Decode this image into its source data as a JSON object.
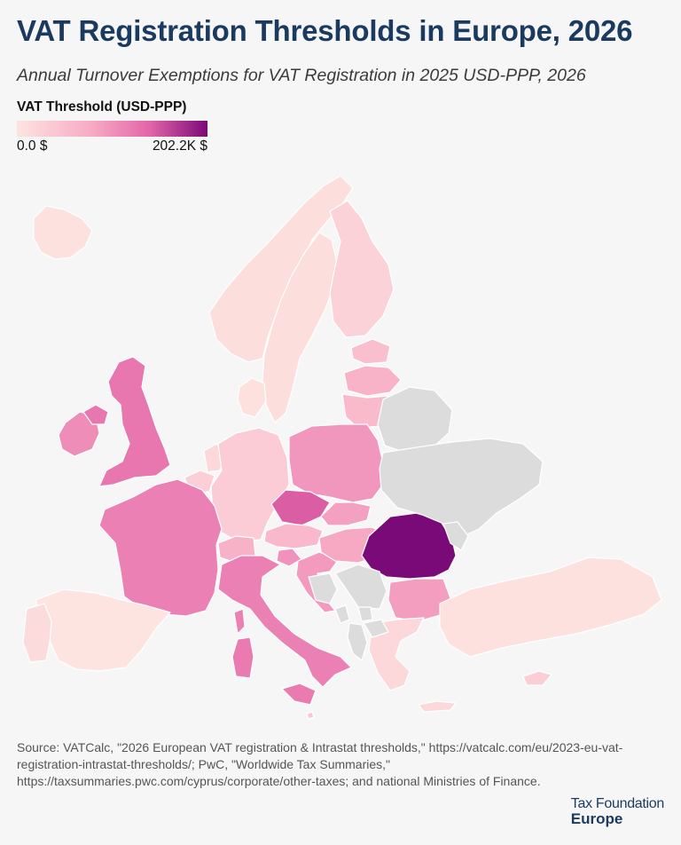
{
  "header": {
    "title": "VAT Registration Thresholds in Europe, 2026",
    "subtitle": "Annual Turnover Exemptions for VAT Registration in 2025 USD-PPP, 2026"
  },
  "legend": {
    "title": "VAT Threshold (USD-PPP)",
    "min_label": "0.0 $",
    "max_label": "202.2K $",
    "min_value": 0,
    "max_value": 202200,
    "color_low": "#fde4e0",
    "color_high": "#7a0a77",
    "no_data_color": "#dcdcdc"
  },
  "map": {
    "regions": [
      {
        "name": "Iceland",
        "level": 0.02
      },
      {
        "name": "Norway",
        "level": 0.04
      },
      {
        "name": "Sweden",
        "level": 0.04
      },
      {
        "name": "Finland",
        "level": 0.12
      },
      {
        "name": "Estonia",
        "level": 0.25
      },
      {
        "name": "Latvia",
        "level": 0.33
      },
      {
        "name": "Lithuania",
        "level": 0.28
      },
      {
        "name": "Denmark",
        "level": 0.02
      },
      {
        "name": "United Kingdom",
        "level": 0.62
      },
      {
        "name": "Ireland",
        "level": 0.52
      },
      {
        "name": "Northern Ireland",
        "level": 0.62
      },
      {
        "name": "Netherlands",
        "level": 0.08
      },
      {
        "name": "Belgium",
        "level": 0.14
      },
      {
        "name": "Luxembourg",
        "level": 0.2
      },
      {
        "name": "Germany",
        "level": 0.16
      },
      {
        "name": "Poland",
        "level": 0.48
      },
      {
        "name": "Czechia",
        "level": 0.72
      },
      {
        "name": "Slovakia",
        "level": 0.44
      },
      {
        "name": "Austria",
        "level": 0.3
      },
      {
        "name": "Switzerland",
        "level": 0.34
      },
      {
        "name": "France",
        "level": 0.58
      },
      {
        "name": "Slovenia",
        "level": 0.5
      },
      {
        "name": "Croatia",
        "level": 0.46
      },
      {
        "name": "Hungary",
        "level": 0.4
      },
      {
        "name": "Romania",
        "level": 1.0
      },
      {
        "name": "Bulgaria",
        "level": 0.45
      },
      {
        "name": "Italy",
        "level": 0.58
      },
      {
        "name": "Sardinia",
        "level": 0.6
      },
      {
        "name": "Corsica",
        "level": 0.58
      },
      {
        "name": "Sicily",
        "level": 0.6
      },
      {
        "name": "Spain",
        "level": 0.0
      },
      {
        "name": "Portugal",
        "level": 0.06
      },
      {
        "name": "Greece",
        "level": 0.08
      },
      {
        "name": "Crete",
        "level": 0.08
      },
      {
        "name": "Turkey",
        "level": 0.02
      },
      {
        "name": "Cyprus",
        "level": 0.15
      },
      {
        "name": "Malta",
        "level": 0.2
      },
      {
        "name": "Belarus",
        "level": null
      },
      {
        "name": "Ukraine",
        "level": null
      },
      {
        "name": "Moldova",
        "level": null
      },
      {
        "name": "Serbia",
        "level": null
      },
      {
        "name": "Bosnia and Herzegovina",
        "level": null
      },
      {
        "name": "Montenegro",
        "level": null
      },
      {
        "name": "Kosovo",
        "level": null
      },
      {
        "name": "North Macedonia",
        "level": null
      },
      {
        "name": "Albania",
        "level": null
      }
    ]
  },
  "footer": {
    "source": "Source: VATCalc, \"2026 European VAT registration & Intrastat thresholds,\" https://vatcalc.com/eu/2023-eu-vat-registration-intrastat-thresholds/; PwC, \"Worldwide Tax Summaries,\" https://taxsummaries.pwc.com/cyprus/corporate/other-taxes; and national Ministries of Finance.",
    "brand_top": "Tax Foundation",
    "brand_bottom": "Europe"
  }
}
